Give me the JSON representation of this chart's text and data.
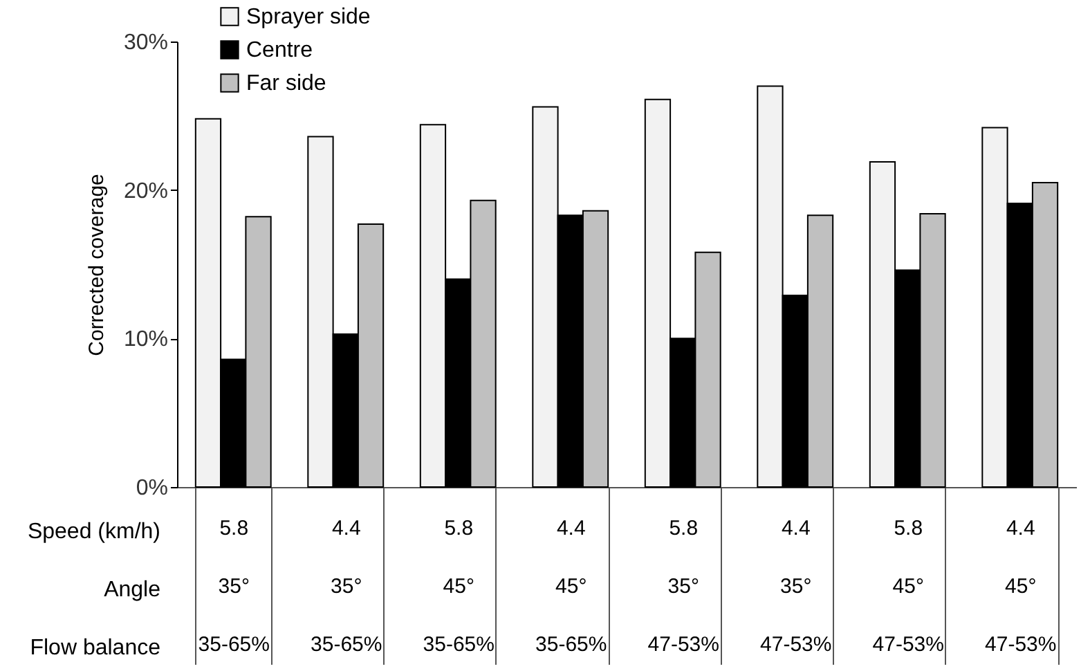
{
  "chart_data": {
    "type": "bar",
    "ylabel": "Corrected coverage",
    "categories": [
      "5.8\n35°\n35-65%",
      "4.4\n35°\n35-65%",
      "5.8\n45°\n35-65%",
      "4.4\n45°\n35-65%",
      "5.8\n35°\n47-53%",
      "4.4\n35°\n47-53%",
      "5.8\n45°\n47-53%",
      "4.4\n45°\n47-53%"
    ],
    "series": [
      {
        "name": "Sprayer side",
        "color": "#f2f2f2",
        "values": [
          24.8,
          23.6,
          24.4,
          25.6,
          26.1,
          27.0,
          21.9,
          24.2
        ]
      },
      {
        "name": "Centre",
        "color": "#000000",
        "values": [
          8.6,
          10.3,
          14.0,
          18.3,
          10.0,
          12.9,
          14.6,
          19.1
        ]
      },
      {
        "name": "Far side",
        "color": "#c0c0c0",
        "values": [
          18.2,
          17.7,
          19.3,
          18.6,
          15.8,
          18.3,
          18.4,
          20.5
        ]
      }
    ],
    "ylim": [
      0,
      30
    ],
    "yticks": [
      {
        "value": 0,
        "label": "0%"
      },
      {
        "value": 10,
        "label": "10%"
      },
      {
        "value": 20,
        "label": "20%"
      },
      {
        "value": 30,
        "label": "30%"
      }
    ],
    "annotations": [
      "Speed (km/h)",
      "Angle",
      "Flow balance"
    ],
    "grid": false,
    "legend": "top left"
  }
}
